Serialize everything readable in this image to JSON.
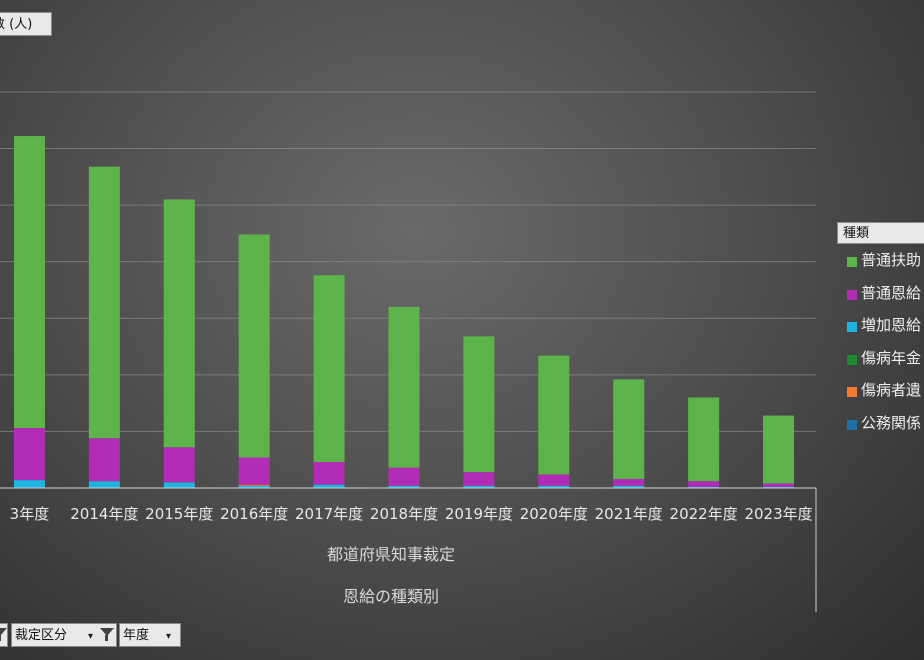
{
  "value_field_label": "数 (人)",
  "chart_data": {
    "type": "bar",
    "stacked": true,
    "categories": [
      "3年度",
      "2014年度",
      "2015年度",
      "2016年度",
      "2017年度",
      "2018年度",
      "2019年度",
      "2020年度",
      "2021年度",
      "2022年度",
      "2023年度"
    ],
    "series": [
      {
        "name": "公務関係",
        "color": "#1f6fa8",
        "values": [
          0,
          0,
          0,
          0,
          0,
          0,
          0,
          0,
          0,
          0,
          0
        ]
      },
      {
        "name": "増加恩給",
        "color": "#1fb4e0",
        "values": [
          7,
          6,
          5,
          2,
          3,
          2,
          2,
          2,
          2,
          1,
          1
        ]
      },
      {
        "name": "傷病者遺",
        "color": "#f07a30",
        "values": [
          0,
          0,
          0,
          1,
          0,
          0,
          0,
          0,
          0,
          0,
          0
        ]
      },
      {
        "name": "傷病年金",
        "color": "#1e8a2e",
        "values": [
          0,
          0,
          0,
          0,
          0,
          0,
          0,
          0,
          0,
          0,
          0
        ]
      },
      {
        "name": "普通恩給",
        "color": "#b22cb5",
        "values": [
          46,
          38,
          31,
          24,
          20,
          16,
          12,
          10,
          6,
          5,
          3
        ]
      },
      {
        "name": "普通扶助",
        "color": "#5db44a",
        "values": [
          258,
          240,
          219,
          197,
          165,
          142,
          120,
          105,
          88,
          74,
          60
        ]
      }
    ],
    "x_group_labels": [
      "都道府県知事裁定",
      "恩給の種類別"
    ],
    "ylim": [
      0,
      380
    ],
    "grid": true,
    "legend_position": "right"
  },
  "legend": {
    "title": "種類",
    "items": [
      {
        "label": "普通扶助",
        "color": "#5db44a"
      },
      {
        "label": "普通恩給",
        "color": "#b22cb5"
      },
      {
        "label": "増加恩給",
        "color": "#1fb4e0"
      },
      {
        "label": "傷病年金",
        "color": "#1e8a2e"
      },
      {
        "label": "傷病者遺",
        "color": "#f07a30"
      },
      {
        "label": "公務関係",
        "color": "#1f6fa8"
      }
    ]
  },
  "filters": [
    {
      "label": "",
      "icon": "filter-icon"
    },
    {
      "label": "裁定区分",
      "icon": "filter-icon"
    },
    {
      "label": "年度",
      "icon": "dropdown-icon"
    }
  ]
}
